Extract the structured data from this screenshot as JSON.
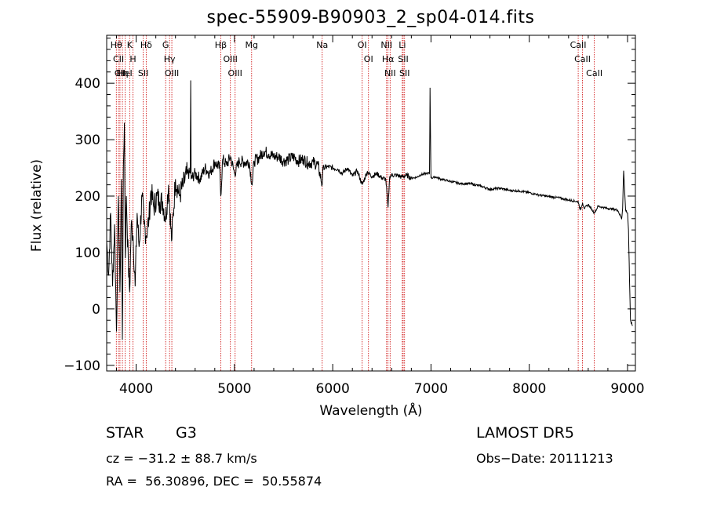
{
  "title": "spec-55909-B90903_2_sp04-014.fits",
  "footer": {
    "object_class": "STAR",
    "subclass": "G3",
    "survey": "LAMOST DR5",
    "cz": "cz = −31.2 ± 88.7 km/s",
    "obs_date": "Obs−Date: 20111213",
    "coords": "RA =  56.30896, DEC =  50.55874"
  },
  "chart_data": {
    "type": "line",
    "title": "spec-55909-B90903_2_sp04-014.fits",
    "xlabel": "Wavelength (Å)",
    "ylabel": "Flux (relative)",
    "xlim": [
      3700,
      9080
    ],
    "ylim": [
      -110,
      485
    ],
    "xticks": [
      4000,
      5000,
      6000,
      7000,
      8000,
      9000
    ],
    "yticks": [
      -100,
      0,
      100,
      200,
      300,
      400
    ],
    "ytick_labels": [
      "−100",
      "0",
      "100",
      "200",
      "300",
      "400"
    ],
    "grid": false,
    "line_color": "#000000",
    "marker_color": "#cc0000",
    "series": [
      {
        "x": [
          3700,
          3720,
          3740,
          3760,
          3780,
          3800,
          3820,
          3835,
          3850,
          3860,
          3870,
          3880,
          3890,
          3900,
          3920,
          3934,
          3950,
          3968,
          3990,
          4010,
          4030,
          4060,
          4080,
          4102,
          4130,
          4150,
          4180,
          4210,
          4240,
          4270,
          4300,
          4330,
          4360,
          4400,
          4440,
          4480,
          4520,
          4550,
          4555,
          4560,
          4600,
          4650,
          4700,
          4750,
          4800,
          4850,
          4861,
          4880,
          4920,
          4960,
          5000,
          5050,
          5100,
          5150,
          5180,
          5200,
          5250,
          5300,
          5350,
          5400,
          5450,
          5500,
          5550,
          5600,
          5650,
          5700,
          5750,
          5800,
          5850,
          5893,
          5900,
          5950,
          6000,
          6050,
          6100,
          6150,
          6200,
          6250,
          6300,
          6350,
          6400,
          6450,
          6500,
          6540,
          6563,
          6580,
          6600,
          6650,
          6700,
          6750,
          6800,
          6850,
          6900,
          6950,
          6985,
          6990,
          7000,
          7050,
          7100,
          7150,
          7200,
          7300,
          7400,
          7500,
          7600,
          7700,
          7800,
          7900,
          8000,
          8100,
          8200,
          8300,
          8400,
          8498,
          8520,
          8542,
          8560,
          8600,
          8662,
          8700,
          8750,
          8800,
          8850,
          8900,
          8940,
          8950,
          8960,
          8980,
          9000,
          9010,
          9020,
          9030,
          9050
        ],
        "y": [
          120,
          60,
          170,
          40,
          150,
          -40,
          200,
          30,
          230,
          -55,
          250,
          330,
          90,
          200,
          80,
          30,
          150,
          130,
          40,
          170,
          110,
          200,
          150,
          130,
          160,
          210,
          180,
          200,
          190,
          190,
          160,
          220,
          120,
          230,
          200,
          220,
          240,
          240,
          405,
          230,
          240,
          230,
          250,
          240,
          260,
          250,
          200,
          265,
          255,
          270,
          240,
          262,
          260,
          260,
          220,
          262,
          268,
          280,
          275,
          270,
          270,
          262,
          265,
          270,
          262,
          266,
          258,
          260,
          255,
          220,
          250,
          252,
          250,
          248,
          240,
          250,
          235,
          245,
          220,
          243,
          235,
          240,
          232,
          230,
          180,
          235,
          237,
          237,
          234,
          237,
          232,
          233,
          238,
          240,
          240,
          392,
          232,
          234,
          230,
          228,
          226,
          222,
          222,
          218,
          212,
          214,
          210,
          209,
          206,
          202,
          199,
          197,
          193,
          190,
          175,
          188,
          178,
          185,
          170,
          182,
          180,
          178,
          177,
          175,
          160,
          178,
          245,
          175,
          170,
          140,
          50,
          -20,
          -30
        ]
      }
    ],
    "markers": [
      {
        "wavelength": 3798,
        "label": "Hθ"
      },
      {
        "wavelength": 3820,
        "label": "CII"
      },
      {
        "wavelength": 3835,
        "label": "CII"
      },
      {
        "wavelength": 3860,
        "label": "Hη"
      },
      {
        "wavelength": 3889,
        "label": "HeI"
      },
      {
        "wavelength": 3934,
        "label": "K"
      },
      {
        "wavelength": 3968,
        "label": "H"
      },
      {
        "wavelength": 4102,
        "label": "Hδ"
      },
      {
        "wavelength": 4072,
        "label": "SII"
      },
      {
        "wavelength": 4300,
        "label": "G"
      },
      {
        "wavelength": 4340,
        "label": "Hγ"
      },
      {
        "wavelength": 4363,
        "label": "OIII"
      },
      {
        "wavelength": 4861,
        "label": "Hβ"
      },
      {
        "wavelength": 4959,
        "label": "OIII"
      },
      {
        "wavelength": 5007,
        "label": "OIII"
      },
      {
        "wavelength": 5175,
        "label": "Mg"
      },
      {
        "wavelength": 5893,
        "label": "Na"
      },
      {
        "wavelength": 6300,
        "label": "OI"
      },
      {
        "wavelength": 6364,
        "label": "OI"
      },
      {
        "wavelength": 6548,
        "label": "NII"
      },
      {
        "wavelength": 6563,
        "label": "Hα"
      },
      {
        "wavelength": 6584,
        "label": "NII"
      },
      {
        "wavelength": 6708,
        "label": "Li"
      },
      {
        "wavelength": 6717,
        "label": "SII"
      },
      {
        "wavelength": 6731,
        "label": "SII"
      },
      {
        "wavelength": 8498,
        "label": "CaII"
      },
      {
        "wavelength": 8542,
        "label": "CaII"
      },
      {
        "wavelength": 8662,
        "label": "CaII"
      }
    ]
  }
}
